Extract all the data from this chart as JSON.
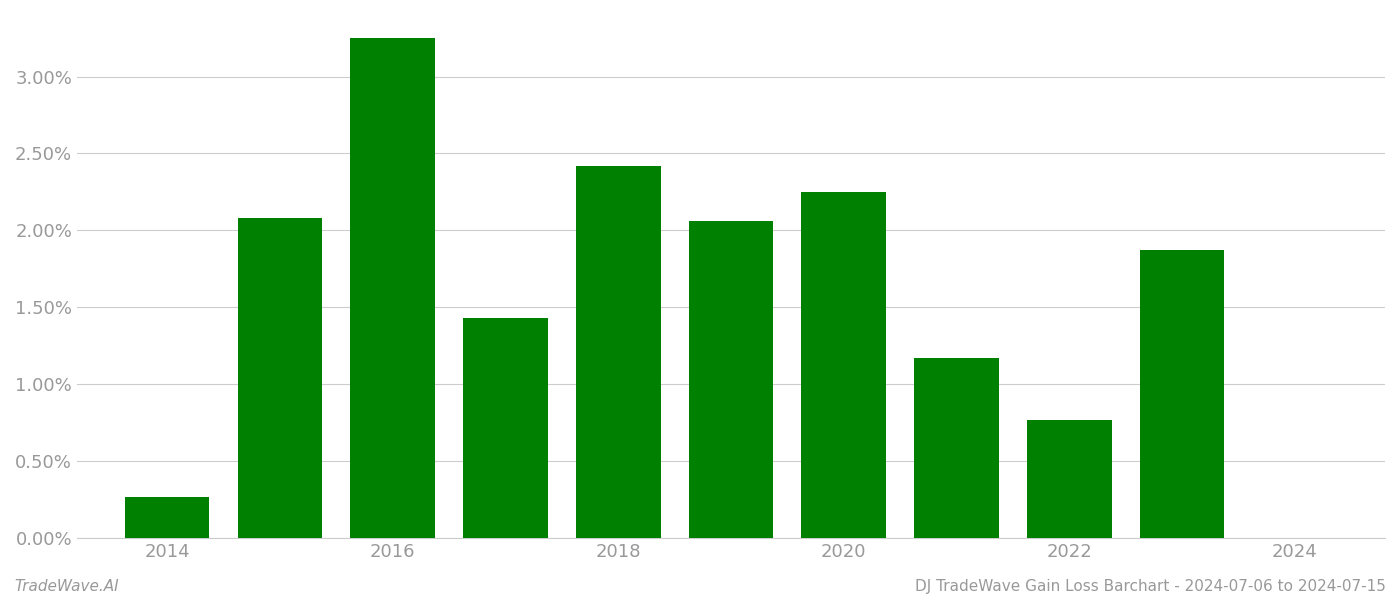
{
  "years": [
    2014,
    2015,
    2016,
    2017,
    2018,
    2019,
    2020,
    2021,
    2022,
    2023,
    2024
  ],
  "values": [
    0.0027,
    0.0208,
    0.0325,
    0.0143,
    0.0242,
    0.0206,
    0.0225,
    0.0117,
    0.0077,
    0.0187,
    0.0
  ],
  "bar_color": "#008000",
  "background_color": "#ffffff",
  "grid_color": "#cccccc",
  "ylim": [
    0,
    0.034
  ],
  "ytick_values": [
    0.0,
    0.005,
    0.01,
    0.015,
    0.02,
    0.025,
    0.03
  ],
  "footer_left": "TradeWave.AI",
  "footer_right": "DJ TradeWave Gain Loss Barchart - 2024-07-06 to 2024-07-15",
  "footer_fontsize": 11,
  "tick_label_color": "#999999",
  "tick_fontsize": 13
}
